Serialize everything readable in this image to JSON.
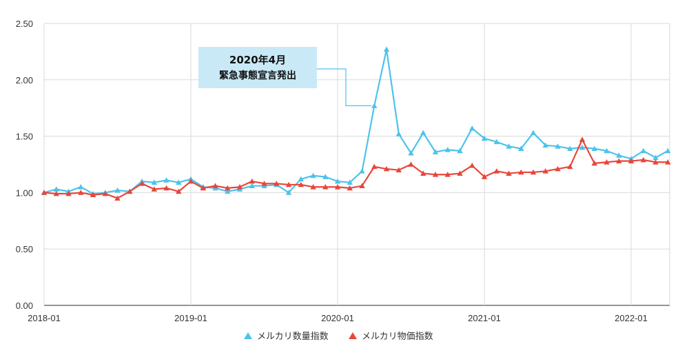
{
  "chart_data": {
    "type": "line",
    "x": [
      "2018-01",
      "2018-02",
      "2018-03",
      "2018-04",
      "2018-05",
      "2018-06",
      "2018-07",
      "2018-08",
      "2018-09",
      "2018-10",
      "2018-11",
      "2018-12",
      "2019-01",
      "2019-02",
      "2019-03",
      "2019-04",
      "2019-05",
      "2019-06",
      "2019-07",
      "2019-08",
      "2019-09",
      "2019-10",
      "2019-11",
      "2019-12",
      "2020-01",
      "2020-02",
      "2020-03",
      "2020-04",
      "2020-05",
      "2020-06",
      "2020-07",
      "2020-08",
      "2020-09",
      "2020-10",
      "2020-11",
      "2020-12",
      "2021-01",
      "2021-02",
      "2021-03",
      "2021-04",
      "2021-05",
      "2021-06",
      "2021-07",
      "2021-08",
      "2021-09",
      "2021-10",
      "2021-11",
      "2021-12",
      "2022-01",
      "2022-02",
      "2022-03",
      "2022-04"
    ],
    "x_tick_labels": [
      "2018-01",
      "2019-01",
      "2020-01",
      "2021-01",
      "2022-01"
    ],
    "y_tick_labels": [
      "0.00",
      "0.50",
      "1.00",
      "1.50",
      "2.00",
      "2.50"
    ],
    "ylim": [
      0,
      2.5
    ],
    "grid": true,
    "legend_position": "bottom",
    "series": [
      {
        "name": "メルカリ数量指数",
        "color": "#4cc3ea",
        "values": [
          1.0,
          1.03,
          1.01,
          1.05,
          0.99,
          1.0,
          1.02,
          1.01,
          1.1,
          1.09,
          1.11,
          1.09,
          1.12,
          1.05,
          1.04,
          1.01,
          1.03,
          1.06,
          1.06,
          1.07,
          1.0,
          1.12,
          1.15,
          1.14,
          1.1,
          1.09,
          1.19,
          1.77,
          2.27,
          1.52,
          1.35,
          1.53,
          1.36,
          1.38,
          1.37,
          1.57,
          1.48,
          1.45,
          1.41,
          1.39,
          1.53,
          1.42,
          1.41,
          1.39,
          1.4,
          1.39,
          1.37,
          1.33,
          1.3,
          1.37,
          1.31,
          1.37
        ]
      },
      {
        "name": "メルカリ物価指数",
        "color": "#e8463b",
        "values": [
          1.0,
          0.99,
          0.99,
          1.0,
          0.98,
          0.99,
          0.95,
          1.01,
          1.08,
          1.03,
          1.04,
          1.01,
          1.1,
          1.04,
          1.06,
          1.04,
          1.05,
          1.1,
          1.08,
          1.08,
          1.07,
          1.07,
          1.05,
          1.05,
          1.05,
          1.04,
          1.06,
          1.23,
          1.21,
          1.2,
          1.25,
          1.17,
          1.16,
          1.16,
          1.17,
          1.24,
          1.14,
          1.19,
          1.17,
          1.18,
          1.18,
          1.19,
          1.21,
          1.23,
          1.47,
          1.26,
          1.27,
          1.28,
          1.28,
          1.29,
          1.27,
          1.27
        ]
      }
    ],
    "annotation": {
      "line1": "2020年4月",
      "line2": "緊急事態宣言発出",
      "target_x": "2020-04"
    }
  }
}
